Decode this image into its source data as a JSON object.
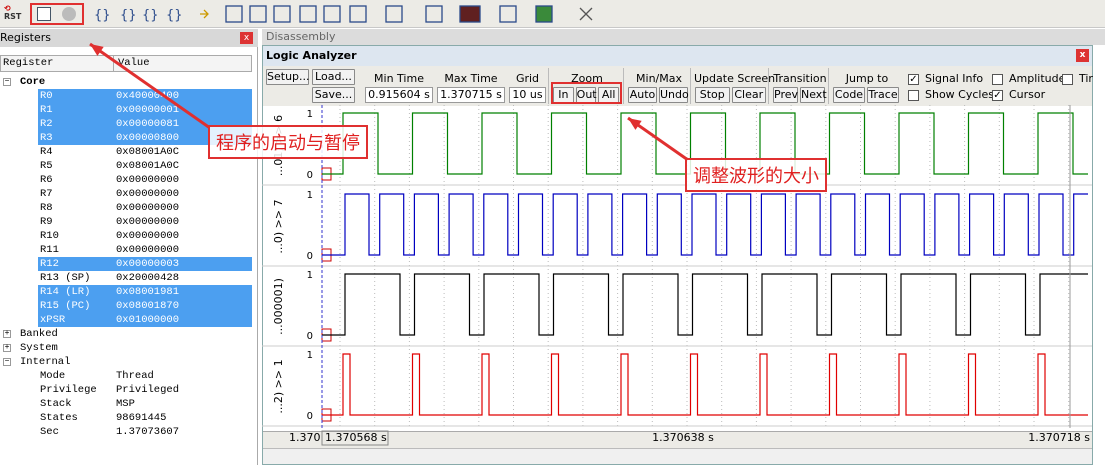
{
  "toolbar": {
    "rst": "RST"
  },
  "registers": {
    "title": "Registers",
    "columns": [
      "Register",
      "Value"
    ],
    "groups": [
      {
        "name": "Core",
        "rows": [
          {
            "name": "R0",
            "value": "0x40000400",
            "selected": true
          },
          {
            "name": "R1",
            "value": "0x00000001",
            "selected": true
          },
          {
            "name": "R2",
            "value": "0x00000081",
            "selected": true
          },
          {
            "name": "R3",
            "value": "0x00000800",
            "selected": true
          },
          {
            "name": "R4",
            "value": "0x08001A0C",
            "selected": false
          },
          {
            "name": "R5",
            "value": "0x08001A0C",
            "selected": false
          },
          {
            "name": "R6",
            "value": "0x00000000",
            "selected": false
          },
          {
            "name": "R7",
            "value": "0x00000000",
            "selected": false
          },
          {
            "name": "R8",
            "value": "0x00000000",
            "selected": false
          },
          {
            "name": "R9",
            "value": "0x00000000",
            "selected": false
          },
          {
            "name": "R10",
            "value": "0x00000000",
            "selected": false
          },
          {
            "name": "R11",
            "value": "0x00000000",
            "selected": false
          },
          {
            "name": "R12",
            "value": "0x00000003",
            "selected": true
          },
          {
            "name": "R13 (SP)",
            "value": "0x20000428",
            "selected": false
          },
          {
            "name": "R14 (LR)",
            "value": "0x08001981",
            "selected": true
          },
          {
            "name": "R15 (PC)",
            "value": "0x08001870",
            "selected": true
          },
          {
            "name": "xPSR",
            "value": "0x01000000",
            "selected": true
          }
        ]
      },
      {
        "name": "Banked"
      },
      {
        "name": "System"
      },
      {
        "name": "Internal",
        "rows": [
          {
            "name": "Mode",
            "value": "Thread",
            "selected": false
          },
          {
            "name": "Privilege",
            "value": "Privileged",
            "selected": false
          },
          {
            "name": "Stack",
            "value": "MSP",
            "selected": false
          },
          {
            "name": "States",
            "value": "98691445",
            "selected": false
          },
          {
            "name": "Sec",
            "value": "1.37073607",
            "selected": false
          }
        ]
      }
    ]
  },
  "disassembly": {
    "title": "Disassembly"
  },
  "logic_analyzer": {
    "title": "Logic Analyzer",
    "setup": "Setup...",
    "load": "Load...",
    "save": "Save...",
    "fields": [
      {
        "label": "Min Time",
        "value": "0.915604 s"
      },
      {
        "label": "Max Time",
        "value": "1.370715 s"
      },
      {
        "label": "Grid",
        "value": "10 us"
      }
    ],
    "button_groups": [
      {
        "label": "Zoom",
        "buttons": [
          "In",
          "Out",
          "All"
        ]
      },
      {
        "label": "Min/Max",
        "buttons": [
          "Auto",
          "Undo"
        ]
      },
      {
        "label": "Update Screen",
        "buttons": [
          "Stop",
          "Clear"
        ]
      },
      {
        "label": "Transition",
        "buttons": [
          "Prev",
          "Next"
        ]
      },
      {
        "label": "Jump to",
        "buttons": [
          "Code",
          "Trace"
        ]
      }
    ],
    "checkboxes": [
      {
        "label": "Signal Info",
        "checked": true
      },
      {
        "label": "Show Cycles",
        "checked": false
      },
      {
        "label": "Amplitude",
        "checked": false
      },
      {
        "label": "Cursor",
        "checked": true
      },
      {
        "label": "Tir",
        "checked": false
      }
    ],
    "signals": [
      {
        "name": "...01) >> 6",
        "high": "1",
        "low": "0",
        "color": "#008000"
      },
      {
        "name": "...0) >> 7",
        "high": "1",
        "low": "0",
        "color": "#0000c0"
      },
      {
        "name": "...000001)",
        "high": "1",
        "low": "0",
        "color": "#000000"
      },
      {
        "name": "...2) >> 1",
        "high": "1",
        "low": "0",
        "color": "#e00000"
      }
    ],
    "time_axis": [
      "1.370",
      "1.370568 s",
      "1.370638 s",
      "1.370718 s"
    ]
  },
  "annotations": [
    "程序的启动与暂停",
    "调整波形的大小"
  ]
}
